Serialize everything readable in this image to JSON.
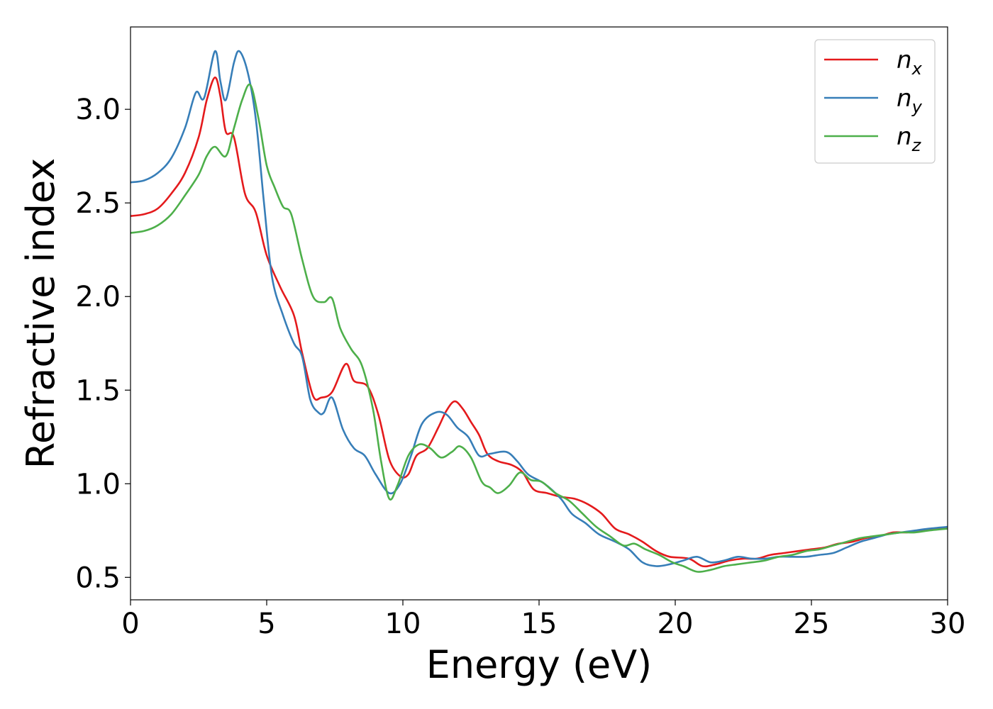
{
  "chart_data": {
    "type": "line",
    "title": "",
    "xlabel": "Energy (eV)",
    "ylabel": "Refractive index",
    "xlim": [
      0,
      30
    ],
    "ylim": [
      0.38,
      3.44
    ],
    "xticks": [
      "0",
      "5",
      "10",
      "15",
      "20",
      "25",
      "30"
    ],
    "yticks": [
      "0.5",
      "1.0",
      "1.5",
      "2.0",
      "2.5",
      "3.0"
    ],
    "grid": false,
    "legend_position": "top-right",
    "series": [
      {
        "name": "n",
        "subscript": "x",
        "color": "#e41a1c",
        "points": [
          [
            0,
            2.43
          ],
          [
            0.5,
            2.44
          ],
          [
            1,
            2.47
          ],
          [
            1.5,
            2.55
          ],
          [
            2,
            2.66
          ],
          [
            2.5,
            2.85
          ],
          [
            2.8,
            3.05
          ],
          [
            3.1,
            3.17
          ],
          [
            3.3,
            3.07
          ],
          [
            3.5,
            2.88
          ],
          [
            3.8,
            2.85
          ],
          [
            4.2,
            2.55
          ],
          [
            4.6,
            2.45
          ],
          [
            5,
            2.22
          ],
          [
            5.5,
            2.05
          ],
          [
            6,
            1.9
          ],
          [
            6.3,
            1.7
          ],
          [
            6.7,
            1.47
          ],
          [
            7,
            1.46
          ],
          [
            7.4,
            1.49
          ],
          [
            7.9,
            1.64
          ],
          [
            8.2,
            1.55
          ],
          [
            8.7,
            1.52
          ],
          [
            9.1,
            1.37
          ],
          [
            9.5,
            1.13
          ],
          [
            9.9,
            1.04
          ],
          [
            10.2,
            1.05
          ],
          [
            10.5,
            1.15
          ],
          [
            10.9,
            1.19
          ],
          [
            11.3,
            1.3
          ],
          [
            11.6,
            1.39
          ],
          [
            11.9,
            1.44
          ],
          [
            12.2,
            1.4
          ],
          [
            12.5,
            1.33
          ],
          [
            12.8,
            1.26
          ],
          [
            13.1,
            1.16
          ],
          [
            13.5,
            1.12
          ],
          [
            14,
            1.1
          ],
          [
            14.4,
            1.06
          ],
          [
            14.8,
            0.97
          ],
          [
            15.3,
            0.95
          ],
          [
            15.8,
            0.93
          ],
          [
            16.3,
            0.92
          ],
          [
            16.8,
            0.89
          ],
          [
            17.3,
            0.84
          ],
          [
            17.8,
            0.76
          ],
          [
            18.3,
            0.73
          ],
          [
            18.8,
            0.69
          ],
          [
            19.3,
            0.64
          ],
          [
            19.8,
            0.61
          ],
          [
            20.5,
            0.6
          ],
          [
            21,
            0.56
          ],
          [
            21.5,
            0.57
          ],
          [
            22,
            0.59
          ],
          [
            22.5,
            0.6
          ],
          [
            23,
            0.6
          ],
          [
            23.5,
            0.62
          ],
          [
            24,
            0.63
          ],
          [
            24.5,
            0.64
          ],
          [
            25,
            0.65
          ],
          [
            25.5,
            0.66
          ],
          [
            26,
            0.68
          ],
          [
            26.5,
            0.69
          ],
          [
            27,
            0.71
          ],
          [
            27.5,
            0.72
          ],
          [
            28,
            0.74
          ],
          [
            28.5,
            0.74
          ],
          [
            29,
            0.75
          ],
          [
            29.5,
            0.76
          ],
          [
            30,
            0.76
          ]
        ]
      },
      {
        "name": "n",
        "subscript": "y",
        "color": "#377eb8",
        "points": [
          [
            0,
            2.61
          ],
          [
            0.5,
            2.62
          ],
          [
            1,
            2.66
          ],
          [
            1.5,
            2.74
          ],
          [
            2,
            2.9
          ],
          [
            2.4,
            3.09
          ],
          [
            2.7,
            3.06
          ],
          [
            3.1,
            3.31
          ],
          [
            3.3,
            3.15
          ],
          [
            3.5,
            3.05
          ],
          [
            3.8,
            3.25
          ],
          [
            4,
            3.31
          ],
          [
            4.3,
            3.2
          ],
          [
            4.6,
            2.95
          ],
          [
            4.9,
            2.5
          ],
          [
            5.2,
            2.1
          ],
          [
            5.6,
            1.9
          ],
          [
            6,
            1.75
          ],
          [
            6.3,
            1.68
          ],
          [
            6.6,
            1.45
          ],
          [
            6.9,
            1.38
          ],
          [
            7.1,
            1.38
          ],
          [
            7.4,
            1.46
          ],
          [
            7.8,
            1.29
          ],
          [
            8.2,
            1.19
          ],
          [
            8.6,
            1.15
          ],
          [
            9,
            1.05
          ],
          [
            9.5,
            0.95
          ],
          [
            9.9,
            1.0
          ],
          [
            10.3,
            1.15
          ],
          [
            10.7,
            1.32
          ],
          [
            11.2,
            1.38
          ],
          [
            11.6,
            1.37
          ],
          [
            12,
            1.3
          ],
          [
            12.4,
            1.25
          ],
          [
            12.8,
            1.15
          ],
          [
            13.2,
            1.16
          ],
          [
            13.8,
            1.17
          ],
          [
            14.2,
            1.12
          ],
          [
            14.6,
            1.05
          ],
          [
            15.2,
            1.0
          ],
          [
            15.8,
            0.92
          ],
          [
            16.2,
            0.84
          ],
          [
            16.7,
            0.79
          ],
          [
            17.2,
            0.73
          ],
          [
            17.8,
            0.69
          ],
          [
            18.3,
            0.65
          ],
          [
            18.8,
            0.58
          ],
          [
            19.3,
            0.56
          ],
          [
            19.8,
            0.57
          ],
          [
            20.3,
            0.59
          ],
          [
            20.8,
            0.61
          ],
          [
            21.3,
            0.58
          ],
          [
            21.8,
            0.59
          ],
          [
            22.3,
            0.61
          ],
          [
            22.8,
            0.6
          ],
          [
            23.3,
            0.6
          ],
          [
            23.8,
            0.61
          ],
          [
            24.3,
            0.61
          ],
          [
            24.8,
            0.61
          ],
          [
            25.3,
            0.62
          ],
          [
            25.8,
            0.63
          ],
          [
            26.3,
            0.66
          ],
          [
            26.8,
            0.69
          ],
          [
            27.3,
            0.71
          ],
          [
            27.8,
            0.73
          ],
          [
            28.3,
            0.74
          ],
          [
            28.8,
            0.75
          ],
          [
            29.3,
            0.76
          ],
          [
            30,
            0.77
          ]
        ]
      },
      {
        "name": "n",
        "subscript": "z",
        "color": "#4daf4a",
        "points": [
          [
            0,
            2.34
          ],
          [
            0.5,
            2.35
          ],
          [
            1,
            2.38
          ],
          [
            1.5,
            2.44
          ],
          [
            2,
            2.54
          ],
          [
            2.5,
            2.65
          ],
          [
            2.8,
            2.75
          ],
          [
            3.1,
            2.8
          ],
          [
            3.5,
            2.75
          ],
          [
            3.8,
            2.9
          ],
          [
            4.1,
            3.05
          ],
          [
            4.4,
            3.13
          ],
          [
            4.7,
            2.95
          ],
          [
            5,
            2.7
          ],
          [
            5.3,
            2.58
          ],
          [
            5.6,
            2.48
          ],
          [
            5.9,
            2.44
          ],
          [
            6.3,
            2.2
          ],
          [
            6.7,
            2.0
          ],
          [
            7.1,
            1.97
          ],
          [
            7.4,
            1.99
          ],
          [
            7.7,
            1.83
          ],
          [
            8.1,
            1.72
          ],
          [
            8.5,
            1.63
          ],
          [
            8.9,
            1.4
          ],
          [
            9.2,
            1.12
          ],
          [
            9.5,
            0.92
          ],
          [
            9.8,
            0.99
          ],
          [
            10.2,
            1.15
          ],
          [
            10.6,
            1.21
          ],
          [
            11,
            1.19
          ],
          [
            11.4,
            1.14
          ],
          [
            11.8,
            1.17
          ],
          [
            12.1,
            1.2
          ],
          [
            12.5,
            1.14
          ],
          [
            12.9,
            1.01
          ],
          [
            13.2,
            0.98
          ],
          [
            13.5,
            0.95
          ],
          [
            13.9,
            0.99
          ],
          [
            14.3,
            1.06
          ],
          [
            14.7,
            1.02
          ],
          [
            15.1,
            1.01
          ],
          [
            15.6,
            0.95
          ],
          [
            16.1,
            0.91
          ],
          [
            16.6,
            0.84
          ],
          [
            17.1,
            0.77
          ],
          [
            17.6,
            0.72
          ],
          [
            18.1,
            0.67
          ],
          [
            18.5,
            0.68
          ],
          [
            18.9,
            0.65
          ],
          [
            19.4,
            0.62
          ],
          [
            19.9,
            0.58
          ],
          [
            20.3,
            0.56
          ],
          [
            20.8,
            0.53
          ],
          [
            21.3,
            0.54
          ],
          [
            21.8,
            0.56
          ],
          [
            22.3,
            0.57
          ],
          [
            22.8,
            0.58
          ],
          [
            23.3,
            0.59
          ],
          [
            23.8,
            0.61
          ],
          [
            24.3,
            0.62
          ],
          [
            24.8,
            0.64
          ],
          [
            25.3,
            0.65
          ],
          [
            25.8,
            0.67
          ],
          [
            26.3,
            0.69
          ],
          [
            26.8,
            0.71
          ],
          [
            27.3,
            0.72
          ],
          [
            27.8,
            0.73
          ],
          [
            28.3,
            0.74
          ],
          [
            28.8,
            0.74
          ],
          [
            29.3,
            0.75
          ],
          [
            30,
            0.76
          ]
        ]
      }
    ]
  }
}
